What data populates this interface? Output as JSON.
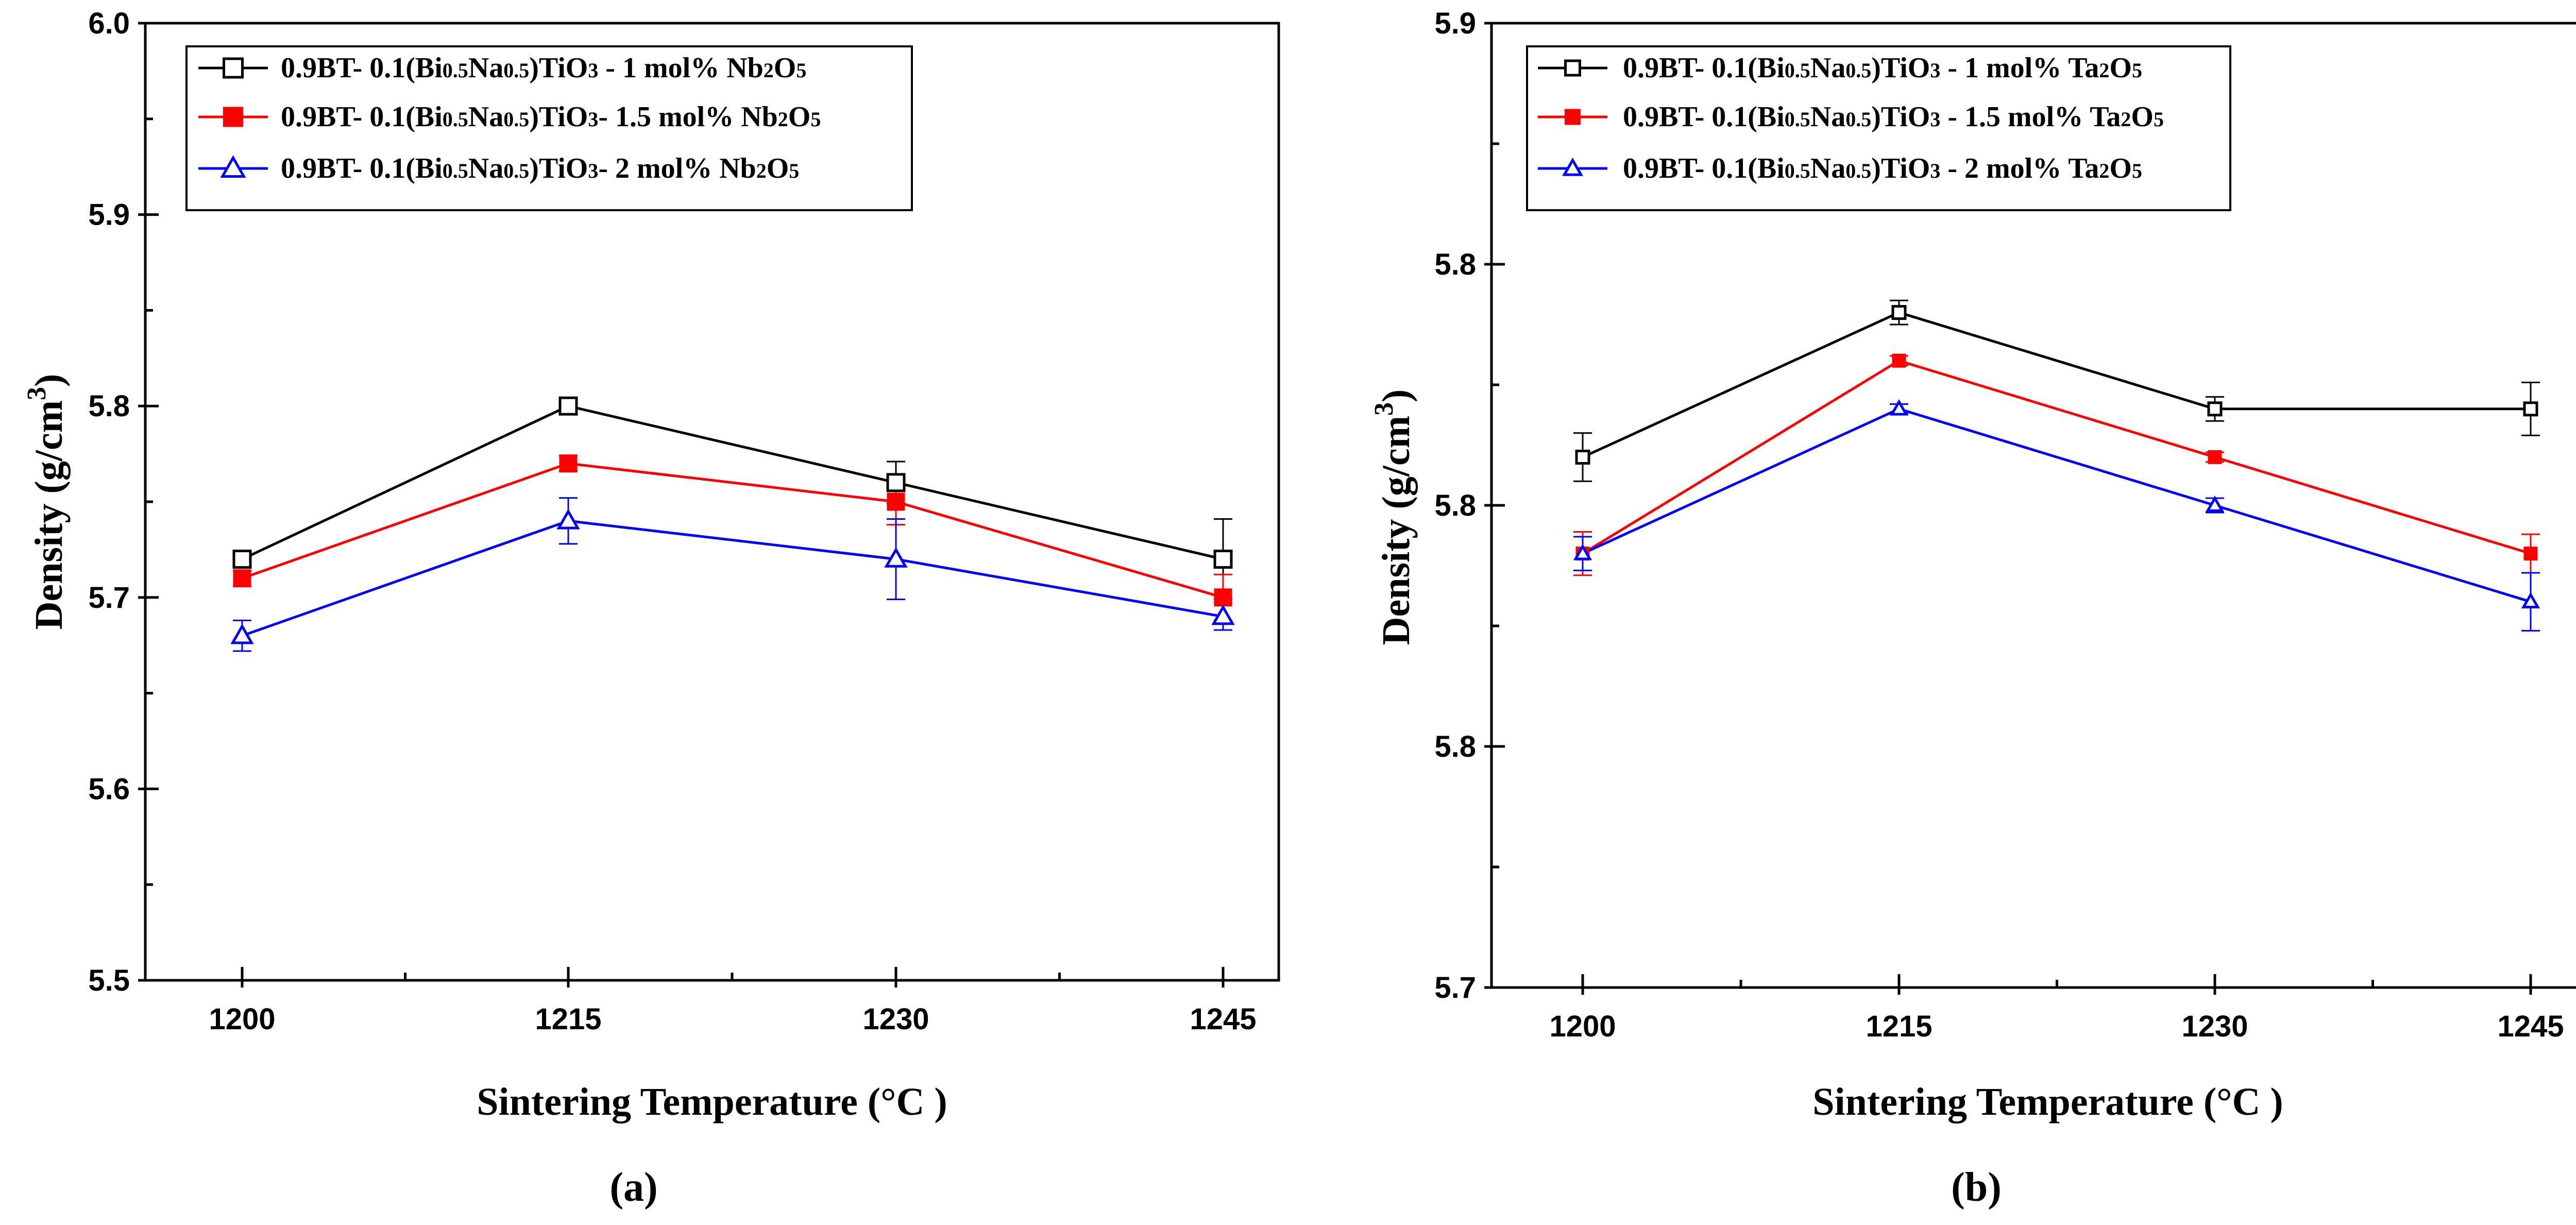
{
  "chart_data": [
    {
      "type": "line",
      "panel_label": "a",
      "xlabel": "Sintering Temperature (°C )",
      "ylabel_text": "Density (g/cm",
      "ylabel_sup": "3",
      "ylabel_close": ")",
      "x_categories": [
        "1200",
        "1215",
        "1230",
        "1245"
      ],
      "ylim": [
        5.5,
        6.0
      ],
      "y_ticks": [
        "5.5",
        "5.6",
        "5.7",
        "5.8",
        "5.9",
        "6.0"
      ],
      "legend_position": "top-left",
      "series": [
        {
          "name": "0.9BT- 0.1(Bi0.5Na0.5)TiO3 - 1 mol% Nb2O5",
          "label": {
            "a": "0.9BT- 0.1(Bi",
            "b": "0.5",
            "c": "Na",
            "d": "0.5",
            "e": ")TiO",
            "f": "3",
            "g": " - 1 mol% Nb",
            "h": "2",
            "i": "O",
            "j": "5"
          },
          "color": "#000000",
          "marker": "square-open",
          "values": [
            5.72,
            5.8,
            5.76,
            5.72
          ],
          "errors": [
            0.004,
            0.004,
            0.011,
            0.021
          ]
        },
        {
          "name": "0.9BT- 0.1(Bi0.5Na0.5)TiO3- 1.5 mol% Nb2O5",
          "label": {
            "a": "0.9BT- 0.1(Bi",
            "b": "0.5",
            "c": "Na",
            "d": "0.5",
            "e": ")TiO",
            "f": "3",
            "g": "- 1.5 mol% Nb",
            "h": "2",
            "i": "O",
            "j": "5"
          },
          "color": "#ff0000",
          "marker": "square-filled",
          "values": [
            5.71,
            5.77,
            5.75,
            5.7
          ],
          "errors": [
            0.004,
            0.004,
            0.012,
            0.012
          ]
        },
        {
          "name": "0.9BT- 0.1(Bi0.5Na0.5)TiO3- 2 mol% Nb2O5",
          "label": {
            "a": "0.9BT- 0.1(Bi",
            "b": "0.5",
            "c": "Na",
            "d": "0.5",
            "e": ")TiO",
            "f": "3",
            "g": "- 2 mol% Nb",
            "h": "2",
            "i": "O",
            "j": "5"
          },
          "color": "#0000ff",
          "marker": "triangle-open",
          "values": [
            5.68,
            5.74,
            5.72,
            5.69
          ],
          "errors": [
            0.008,
            0.012,
            0.021,
            0.007
          ]
        }
      ]
    },
    {
      "type": "line",
      "panel_label": "b",
      "xlabel": "Sintering Temperature (°C )",
      "ylabel_text": "Density (g/cm",
      "ylabel_sup": "3",
      "ylabel_close": ")",
      "x_categories": [
        "1200",
        "1215",
        "1230",
        "1245"
      ],
      "ylim": [
        5.7,
        5.9
      ],
      "y_ticks": [
        "5.7",
        "5.8",
        "5.8",
        "5.8",
        "5.9"
      ],
      "legend_position": "top-left",
      "series": [
        {
          "name": "0.9BT- 0.1(Bi0.5Na0.5)TiO3 - 1 mol% Ta2O5",
          "label": {
            "a": "0.9BT- 0.1(Bi",
            "b": "0.5",
            "c": "Na",
            "d": "0.5",
            "e": ")TiO",
            "f": "3",
            "g": " - 1 mol% Ta",
            "h": "2",
            "i": "O",
            "j": "5"
          },
          "color": "#000000",
          "marker": "square-open",
          "values": [
            5.81,
            5.84,
            5.82,
            5.82
          ],
          "errors": [
            0.005,
            0.0025,
            0.0025,
            0.0055
          ]
        },
        {
          "name": "0.9BT- 0.1(Bi0.5Na0.5)TiO3 - 1.5 mol% Ta2O5",
          "label": {
            "a": "0.9BT- 0.1(Bi",
            "b": "0.5",
            "c": "Na",
            "d": "0.5",
            "e": ")TiO",
            "f": "3",
            "g": " - 1.5 mol% Ta",
            "h": "2",
            "i": "O",
            "j": "5"
          },
          "color": "#ff0000",
          "marker": "square-filled",
          "values": [
            5.79,
            5.83,
            5.81,
            5.79
          ],
          "errors": [
            0.0045,
            0.001,
            0.001,
            0.004
          ]
        },
        {
          "name": "0.9BT- 0.1(Bi0.5Na0.5)TiO3 - 2 mol% Ta2O5",
          "label": {
            "a": "0.9BT- 0.1(Bi",
            "b": "0.5",
            "c": "Na",
            "d": "0.5",
            "e": ")TiO",
            "f": "3",
            "g": " - 2 mol% Ta",
            "h": "2",
            "i": "O",
            "j": "5"
          },
          "color": "#0000ff",
          "marker": "triangle-open",
          "values": [
            5.79,
            5.82,
            5.8,
            5.78
          ],
          "errors": [
            0.0035,
            0.001,
            0.0015,
            0.006
          ]
        }
      ]
    }
  ]
}
